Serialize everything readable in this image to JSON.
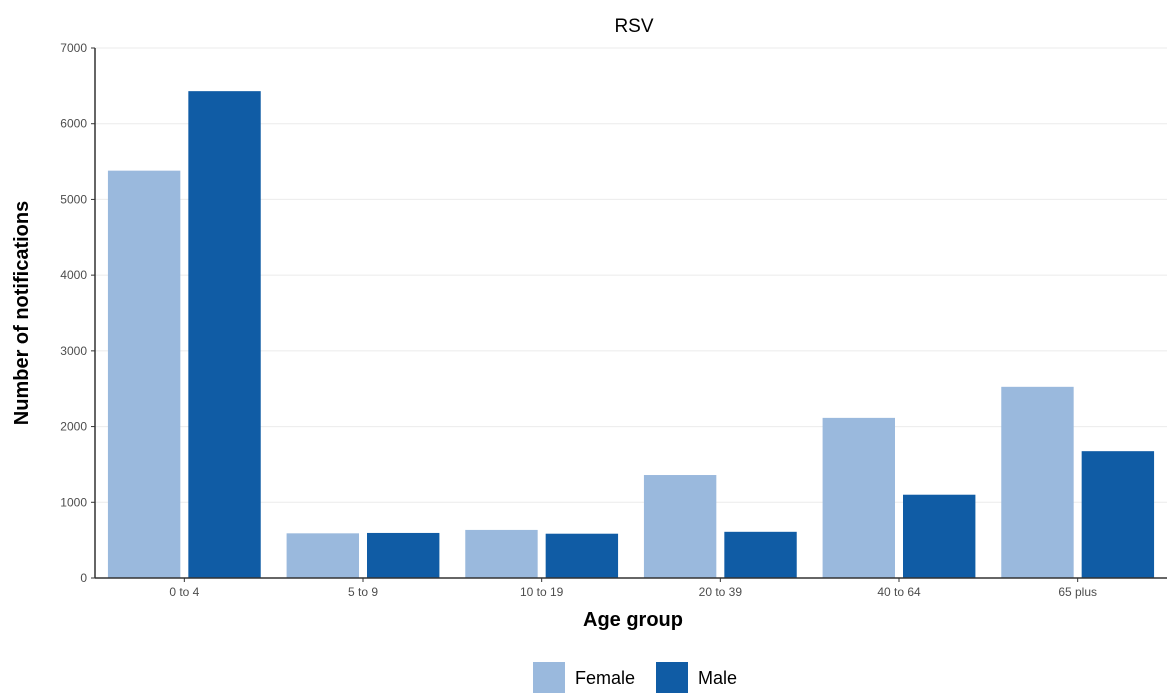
{
  "colors": {
    "female": "#9ab9dd",
    "male": "#105ca5",
    "grid": "#ebebeb",
    "axis": "#333333"
  },
  "chart_data": {
    "type": "bar",
    "title": "RSV",
    "xlabel": "Age group",
    "ylabel": "Number of notifications",
    "categories": [
      "0 to 4",
      "5 to 9",
      "10 to 19",
      "20 to 39",
      "40 to 64",
      "65 plus"
    ],
    "series": [
      {
        "name": "Female",
        "color": "#9ab9dd",
        "values": [
          5380,
          590,
          635,
          1360,
          2115,
          2525
        ]
      },
      {
        "name": "Male",
        "color": "#105ca5",
        "values": [
          6430,
          595,
          585,
          610,
          1100,
          1675
        ]
      }
    ],
    "ylim": [
      0,
      7000
    ],
    "yticks": [
      0,
      1000,
      2000,
      3000,
      4000,
      5000,
      6000,
      7000
    ],
    "grid": true,
    "legend_position": "bottom"
  }
}
